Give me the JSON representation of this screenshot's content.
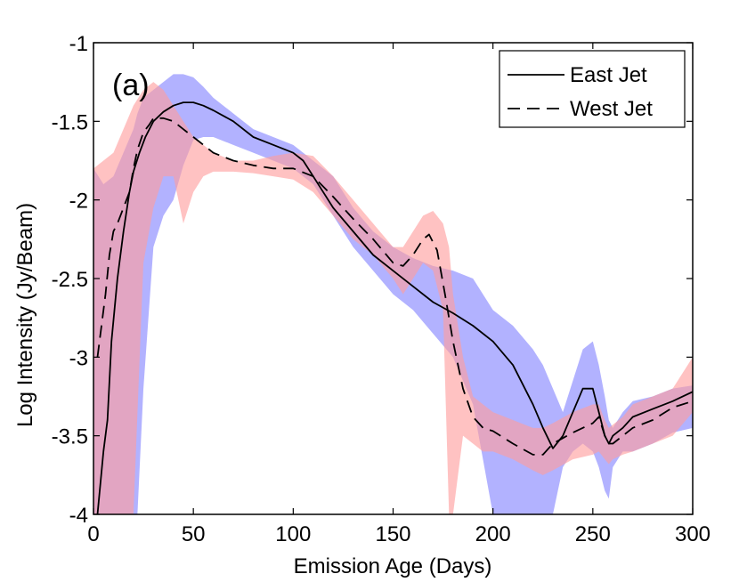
{
  "chart_data": {
    "type": "line",
    "panel_label": "(a)",
    "xlabel": "Emission Age (Days)",
    "ylabel": "Log Intensity (Jy/Beam)",
    "xlim": [
      0,
      300
    ],
    "ylim": [
      -4,
      -1
    ],
    "x_ticks": [
      0,
      50,
      100,
      150,
      200,
      250,
      300
    ],
    "y_ticks": [
      -4,
      -3.5,
      -3,
      -2.5,
      -2,
      -1.5,
      -1
    ],
    "x_tick_labels": [
      "0",
      "50",
      "100",
      "150",
      "200",
      "250",
      "300"
    ],
    "y_tick_labels": [
      "-4",
      "-3.5",
      "-3",
      "-2.5",
      "-2",
      "-1.5",
      "-1"
    ],
    "grid": false,
    "legend_position": "top-right",
    "colors": {
      "east_band": "#aaaaff",
      "west_band": "#ff9c9c",
      "overlap_band": "#bd5fa9",
      "line": "#000000"
    },
    "series": [
      {
        "name": "East Jet",
        "style": "solid",
        "x": [
          2,
          5,
          7,
          9,
          12,
          15,
          18,
          20,
          23,
          26,
          30,
          35,
          40,
          45,
          50,
          55,
          60,
          70,
          80,
          90,
          100,
          105,
          110,
          115,
          120,
          130,
          140,
          150,
          160,
          170,
          180,
          190,
          200,
          210,
          220,
          225,
          230,
          235,
          240,
          245,
          250,
          253,
          256,
          258,
          260,
          265,
          270,
          280,
          290,
          300
        ],
        "y": [
          -4.0,
          -3.6,
          -3.4,
          -2.9,
          -2.5,
          -2.2,
          -1.95,
          -1.82,
          -1.7,
          -1.6,
          -1.5,
          -1.44,
          -1.4,
          -1.38,
          -1.38,
          -1.4,
          -1.43,
          -1.5,
          -1.6,
          -1.65,
          -1.7,
          -1.75,
          -1.85,
          -1.95,
          -2.05,
          -2.2,
          -2.35,
          -2.45,
          -2.55,
          -2.65,
          -2.72,
          -2.8,
          -2.9,
          -3.05,
          -3.3,
          -3.45,
          -3.58,
          -3.5,
          -3.35,
          -3.2,
          -3.2,
          -3.35,
          -3.5,
          -3.55,
          -3.5,
          -3.45,
          -3.38,
          -3.33,
          -3.28,
          -3.22
        ]
      },
      {
        "name": "West Jet",
        "style": "dashed",
        "x": [
          2,
          4,
          6,
          8,
          10,
          12,
          15,
          18,
          20,
          22,
          25,
          28,
          30,
          35,
          40,
          45,
          50,
          55,
          60,
          70,
          80,
          90,
          100,
          110,
          120,
          130,
          140,
          150,
          155,
          160,
          165,
          168,
          172,
          176,
          180,
          185,
          190,
          195,
          200,
          210,
          220,
          225,
          230,
          240,
          250,
          253,
          256,
          258,
          260,
          265,
          270,
          280,
          290,
          300
        ],
        "y": [
          -3.0,
          -2.8,
          -2.6,
          -2.35,
          -2.2,
          -2.15,
          -2.05,
          -1.95,
          -1.8,
          -1.68,
          -1.57,
          -1.52,
          -1.48,
          -1.48,
          -1.5,
          -1.55,
          -1.6,
          -1.65,
          -1.7,
          -1.75,
          -1.78,
          -1.8,
          -1.8,
          -1.85,
          -1.98,
          -2.12,
          -2.25,
          -2.4,
          -2.42,
          -2.35,
          -2.25,
          -2.22,
          -2.32,
          -2.6,
          -2.9,
          -3.2,
          -3.38,
          -3.45,
          -3.47,
          -3.55,
          -3.62,
          -3.62,
          -3.55,
          -3.48,
          -3.42,
          -3.38,
          -3.5,
          -3.55,
          -3.55,
          -3.5,
          -3.45,
          -3.4,
          -3.32,
          -3.28
        ]
      }
    ],
    "uncertainty_bands": [
      {
        "series": "East Jet",
        "x": [
          0,
          5,
          10,
          15,
          20,
          22,
          25,
          30,
          35,
          40,
          45,
          50,
          55,
          60,
          70,
          80,
          90,
          100,
          110,
          120,
          130,
          140,
          150,
          160,
          170,
          180,
          190,
          200,
          210,
          220,
          225,
          230,
          235,
          240,
          245,
          250,
          253,
          256,
          258,
          260,
          265,
          270,
          280,
          290,
          300
        ],
        "upper": [
          -1.8,
          -1.9,
          -1.85,
          -1.7,
          -1.55,
          -1.45,
          -1.35,
          -1.3,
          -1.25,
          -1.2,
          -1.2,
          -1.22,
          -1.28,
          -1.35,
          -1.45,
          -1.55,
          -1.6,
          -1.65,
          -1.75,
          -1.85,
          -2.05,
          -2.2,
          -2.3,
          -2.37,
          -2.42,
          -2.45,
          -2.5,
          -2.7,
          -2.8,
          -2.95,
          -3.05,
          -3.2,
          -3.35,
          -3.15,
          -2.95,
          -2.9,
          -3.05,
          -3.25,
          -3.4,
          -3.45,
          -3.35,
          -3.28,
          -3.25,
          -3.2,
          -3.18
        ],
        "lower": [
          -4.0,
          -4.0,
          -4.0,
          -4.0,
          -4.0,
          -4.0,
          -3.2,
          -2.3,
          -2.1,
          -2.0,
          -1.78,
          -1.62,
          -1.6,
          -1.6,
          -1.65,
          -1.7,
          -1.75,
          -1.8,
          -1.9,
          -2.1,
          -2.3,
          -2.45,
          -2.6,
          -2.7,
          -2.85,
          -3.0,
          -3.3,
          -4.0,
          -4.0,
          -4.0,
          -4.0,
          -4.0,
          -3.7,
          -3.6,
          -3.55,
          -3.6,
          -3.7,
          -3.85,
          -3.9,
          -3.7,
          -3.6,
          -3.6,
          -3.55,
          -3.48,
          -3.45
        ]
      },
      {
        "series": "West Jet",
        "x": [
          0,
          5,
          10,
          15,
          20,
          25,
          30,
          35,
          40,
          45,
          50,
          55,
          60,
          70,
          80,
          90,
          100,
          110,
          120,
          130,
          140,
          150,
          155,
          160,
          165,
          170,
          175,
          178,
          180,
          185,
          190,
          195,
          200,
          210,
          220,
          225,
          230,
          240,
          250,
          253,
          256,
          258,
          260,
          265,
          270,
          280,
          290,
          300
        ],
        "upper": [
          -1.8,
          -1.75,
          -1.7,
          -1.55,
          -1.4,
          -1.3,
          -1.25,
          -1.3,
          -1.4,
          -1.5,
          -1.6,
          -1.65,
          -1.7,
          -1.75,
          -1.75,
          -1.72,
          -1.7,
          -1.72,
          -1.85,
          -2.0,
          -2.15,
          -2.3,
          -2.3,
          -2.2,
          -2.1,
          -2.07,
          -2.15,
          -2.3,
          -2.6,
          -3.0,
          -3.25,
          -3.3,
          -3.35,
          -3.4,
          -3.45,
          -3.45,
          -3.42,
          -3.35,
          -3.3,
          -3.3,
          -3.4,
          -3.45,
          -3.43,
          -3.38,
          -3.3,
          -3.25,
          -3.2,
          -3.0
        ],
        "lower": [
          -4.0,
          -4.0,
          -4.0,
          -4.0,
          -4.0,
          -2.4,
          -2.05,
          -1.85,
          -1.85,
          -2.15,
          -1.95,
          -1.85,
          -1.82,
          -1.82,
          -1.83,
          -1.85,
          -1.87,
          -1.95,
          -2.1,
          -2.25,
          -2.35,
          -2.5,
          -2.6,
          -2.5,
          -2.4,
          -2.45,
          -2.7,
          -4.0,
          -4.0,
          -3.5,
          -3.55,
          -3.6,
          -3.6,
          -3.65,
          -3.72,
          -3.75,
          -3.72,
          -3.65,
          -3.62,
          -3.6,
          -3.65,
          -3.68,
          -3.65,
          -3.62,
          -3.6,
          -3.55,
          -3.5,
          -3.35
        ]
      }
    ]
  }
}
